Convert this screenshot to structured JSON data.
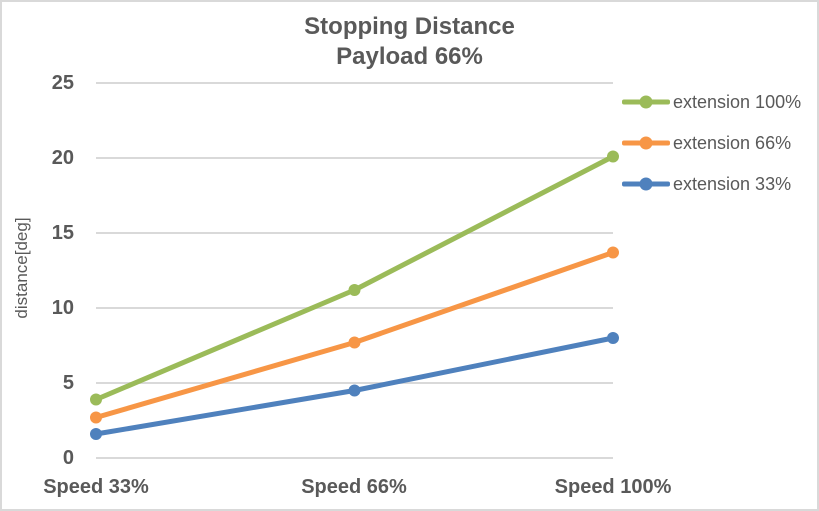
{
  "chart_data": {
    "type": "line",
    "title": "Stopping Distance",
    "subtitle": "Payload 66%",
    "xlabel": "",
    "ylabel": "distance[deg]",
    "categories": [
      "Speed 33%",
      "Speed 66%",
      "Speed 100%"
    ],
    "series": [
      {
        "name": "extension 100%",
        "color": "#9BBB59",
        "values": [
          3.9,
          11.2,
          20.1
        ]
      },
      {
        "name": "extension 66%",
        "color": "#F79646",
        "values": [
          2.7,
          7.7,
          13.7
        ]
      },
      {
        "name": "extension 33%",
        "color": "#4F81BD",
        "values": [
          1.6,
          4.5,
          8.0
        ]
      }
    ],
    "ylim": [
      0,
      25
    ],
    "yticks": [
      0,
      5,
      10,
      15,
      20,
      25
    ],
    "grid": true,
    "legend_position": "right",
    "colors": {
      "text": "#595959",
      "gridline": "#D9D9D9",
      "border": "#D9D9D9",
      "background": "#FFFFFF"
    }
  }
}
